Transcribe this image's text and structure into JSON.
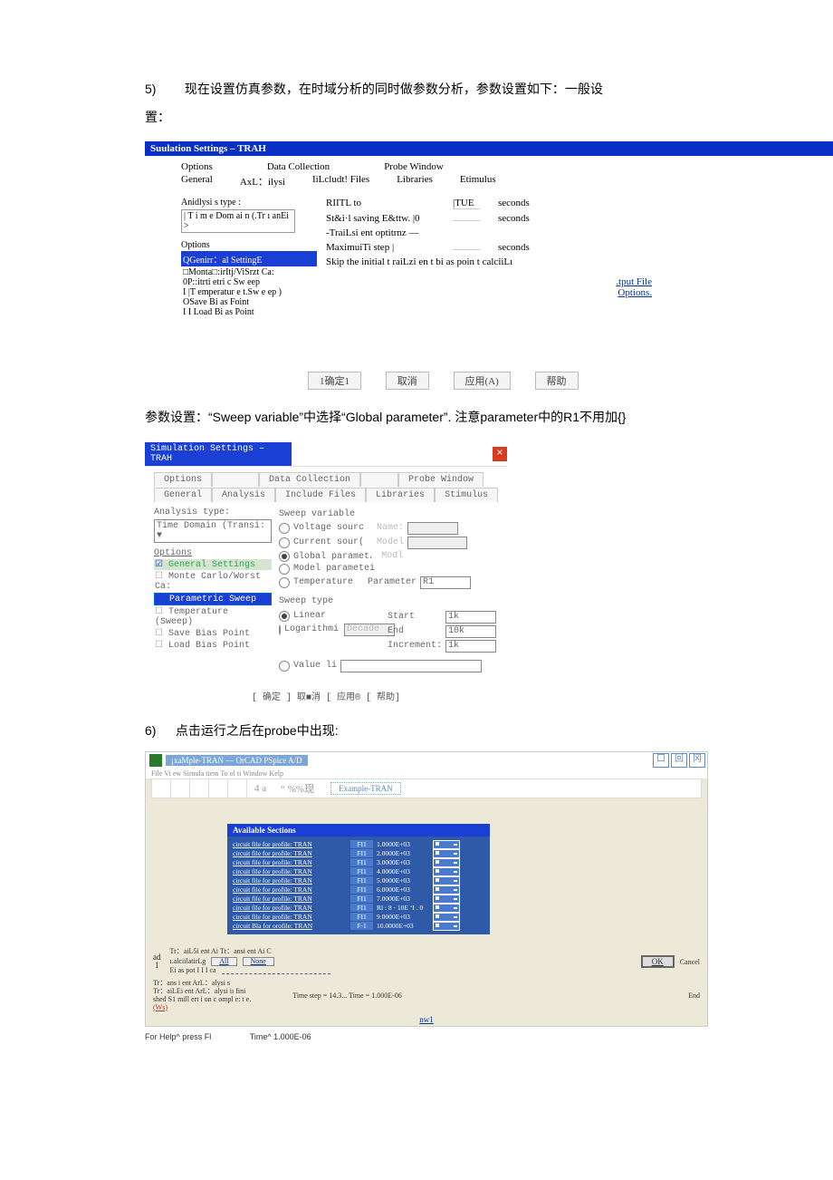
{
  "intro": {
    "num": "5)",
    "text_a": "现在设置仿真参数，在时域分析的同时做参数分析，参数设置如下：一般设",
    "text_b": "置："
  },
  "dlg1": {
    "title": "Suulation Settings – TRAH",
    "tabs1": [
      "Options",
      "",
      "Data Collection",
      "",
      "Probe Window"
    ],
    "tabs2": [
      "General",
      "AxL：ilysi",
      "IiLcludt! Files",
      "Libraries",
      "Etimulus"
    ],
    "analysis_label": "Anidlysi s type :",
    "analysis_value": "| T i m e Dom ai n (.Tr ı anEi >",
    "options_label": "Options",
    "opt_sel": "QGenirr：al SettingE",
    "opt_items": [
      "□Monta□:irItj/ViSrzt Ca:",
      "0P::itrti etri c Sw eep",
      "I |T emperatur e t.Sw e ep )",
      "OSave Bi as Foint",
      "I I Load Bi as Point"
    ],
    "rows": [
      {
        "lab": "RIITL to",
        "val": "|TUE",
        "unit": "seconds"
      },
      {
        "lab": "St&i·l saving E&ttw. |0",
        "val": "",
        "unit": "seconds"
      },
      {
        "lab": "-TraiLsi ent optitrnz —",
        "val": "",
        "unit": ""
      },
      {
        "lab": "MaximuiTi step |",
        "val": "",
        "unit": "seconds"
      },
      {
        "lab": "Skip the initial t raiLzi en t bi as poin t calciiLı",
        "val": "",
        "unit": ""
      }
    ],
    "link": ".tput File Options.",
    "buttons": [
      "1确定1",
      "取消",
      "应用(A)",
      "帮助"
    ]
  },
  "mid_para": "参数设置：“Sweep variable”中选择“Global parameter”. 注意parameter中的R1不用加{}",
  "dlg2": {
    "title": "Simulation Settings – TRAH",
    "tabs1": [
      "Options",
      "",
      "Data Collection",
      "",
      "Probe Window"
    ],
    "tabs2": [
      "General",
      "Analysis",
      "Include Files",
      "Libraries",
      "Stimulus"
    ],
    "analysis_label": "Analysis type:",
    "analysis_value": "Time Domain (Transi: ▼",
    "options_label": "Options",
    "left_opts": {
      "gen": "General Settings",
      "monte": "Monte Carlo/Worst Ca:",
      "param": "Parametric Sweep",
      "temp": "Temperature (Sweep)",
      "save": "Save Bias Point",
      "load": "Load Bias Point"
    },
    "sweepvar": {
      "title": "Sweep variable",
      "volt": "Voltage sourc",
      "curr": "Current sour(",
      "glob": "Global paramet،",
      "model": "Model parametei",
      "temp": "Temperature",
      "name_l": "Name:",
      "model_l": "Model",
      "modl_l": "Modl",
      "param_l": "Parameter",
      "param_v": "R1"
    },
    "sweeptype": {
      "title": "Sweep type",
      "lin": "Linear",
      "log": "Logarithmi",
      "decade": "Decade",
      "vlist": "Value li",
      "start_l": "Start",
      "start_v": "1k",
      "end_l": "End",
      "end_v": "10k",
      "inc_l": "Increment:",
      "inc_v": "1k"
    },
    "buttons": "[ 确定 ]        取■消   [ 应用® [ 帮助]"
  },
  "step6": {
    "num": "6)",
    "text": "点击运行之后在probe中出现:"
  },
  "probe": {
    "title": "¡xaMple-TRAN — OrCAD PSpice A/D",
    "win_btns": [
      "口",
      "回",
      "冈"
    ],
    "menu": "File Vi ew Sirnula tiem To ol ti Window Kelp",
    "tb_a": "4 a",
    "tb_b": "“ %%现",
    "tab": "Example-TRAN",
    "avail_hdr": "Available Sections",
    "rows": [
      {
        "c1": "circuit file for profile: TRAN",
        "c2": "FI1",
        "c3": "1.0000E+03"
      },
      {
        "c1": "circuit file for profile: TRAN",
        "c2": "FI1",
        "c3": "2.0000E+03"
      },
      {
        "c1": "circuit file for profile: TRAN",
        "c2": "FI1",
        "c3": "3.0000E+03"
      },
      {
        "c1": "circuit file for profile: TRAN",
        "c2": "FI1",
        "c3": "4.0000E+03"
      },
      {
        "c1": "circuit file for profile: TRAN",
        "c2": "FI1",
        "c3": "5.0000E+03"
      },
      {
        "c1": "circuit file for profile: TRAN",
        "c2": "FI1",
        "c3": "6.0000E+03"
      },
      {
        "c1": "circuit file for profile: TRAN",
        "c2": "FI1",
        "c3": "7.0000E+03"
      },
      {
        "c1": "circuit file for profile: TRAN",
        "c2": "FI1",
        "c3": "Rl : 8 · 10E ‘I . 0"
      },
      {
        "c1": "circuit file for profile: TRAN",
        "c2": "FI1",
        "c3": "9.0000E+03"
      },
      {
        "c1": "circuit Bla for orofile: TRAN",
        "c2": "F·1",
        "c3": "10.0000E+03"
      }
    ],
    "ad": "ad\n1",
    "bl1": "Tr：aiL5i ent Ai Tr：ansi ent Ai C",
    "bl2": "ı.alciilatirLg",
    "all": "All",
    "none": "None",
    "bl3": "Ei as pot I I I ca",
    "ok": "OK",
    "cancel": "Cancel",
    "bl4": "Tr：ans i ent ArL：alysi s",
    "bl5": "Tr：aiLEi ent ArL：alysi iı fini",
    "bl6": "shed S1 mill ert i on c ompl e: t e.",
    "ts": "Time step =        14.3... Time =           1.000E-06",
    "end": "End",
    "nw1": "nw1",
    "help": "For Help^ press Fl",
    "time": "Time^ 1.000E-06"
  }
}
